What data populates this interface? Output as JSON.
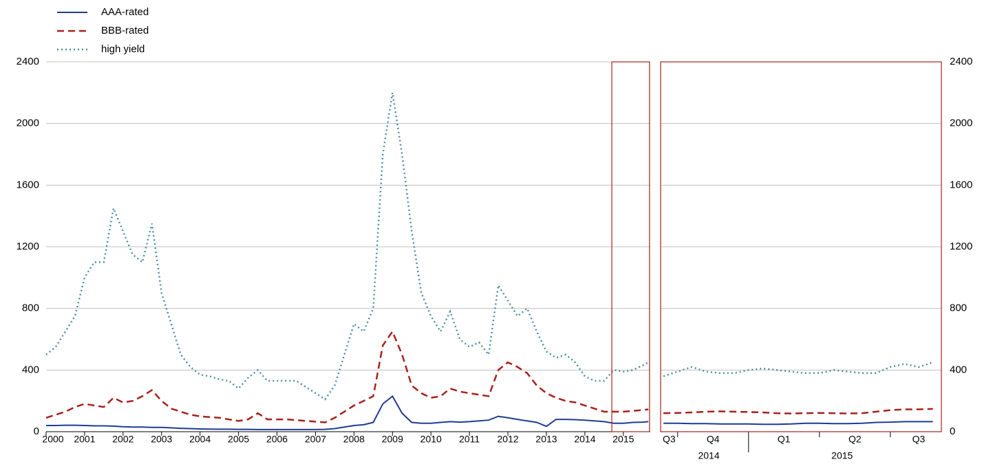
{
  "chart_data": [
    {
      "type": "line",
      "legend": "top-left",
      "grid": true,
      "yaxis_side": "left",
      "xlim": [
        2000,
        2015.7
      ],
      "ylim": [
        0,
        2400
      ],
      "yticks": [
        0,
        400,
        800,
        1200,
        1600,
        2000,
        2400
      ],
      "xticks": [
        2000,
        2001,
        2002,
        2003,
        2004,
        2005,
        2006,
        2007,
        2008,
        2009,
        2010,
        2011,
        2012,
        2013,
        2014,
        2015
      ],
      "highlight": [
        2014.7,
        2015.68
      ],
      "highlight_color": "#a8201a",
      "x": [
        2000,
        2000.25,
        2000.5,
        2000.75,
        2001,
        2001.25,
        2001.5,
        2001.75,
        2002,
        2002.25,
        2002.5,
        2002.75,
        2003,
        2003.25,
        2003.5,
        2003.75,
        2004,
        2004.25,
        2004.5,
        2004.75,
        2005,
        2005.25,
        2005.5,
        2005.75,
        2006,
        2006.25,
        2006.5,
        2006.75,
        2007,
        2007.25,
        2007.5,
        2007.75,
        2008,
        2008.25,
        2008.5,
        2008.75,
        2009,
        2009.25,
        2009.5,
        2009.75,
        2010,
        2010.25,
        2010.5,
        2010.75,
        2011,
        2011.25,
        2011.5,
        2011.75,
        2012,
        2012.25,
        2012.5,
        2012.75,
        2013,
        2013.25,
        2013.5,
        2013.75,
        2014,
        2014.25,
        2014.5,
        2014.75,
        2015,
        2015.25,
        2015.5,
        2015.65
      ],
      "series": [
        {
          "name": "AAA-rated",
          "color": "#1f3a93",
          "dash": "solid",
          "values": [
            40,
            40,
            42,
            42,
            40,
            38,
            38,
            36,
            32,
            30,
            30,
            28,
            28,
            25,
            22,
            20,
            18,
            17,
            16,
            16,
            15,
            15,
            14,
            14,
            14,
            14,
            14,
            14,
            14,
            15,
            20,
            30,
            40,
            45,
            60,
            180,
            230,
            120,
            60,
            55,
            55,
            60,
            65,
            62,
            65,
            70,
            75,
            100,
            90,
            80,
            70,
            60,
            35,
            80,
            80,
            78,
            75,
            70,
            65,
            55,
            55,
            60,
            62,
            65
          ]
        },
        {
          "name": "BBB-rated",
          "color": "#a8201a",
          "dash": "dashed",
          "values": [
            90,
            110,
            130,
            160,
            180,
            170,
            160,
            220,
            190,
            200,
            230,
            270,
            200,
            150,
            130,
            110,
            100,
            95,
            90,
            80,
            70,
            80,
            120,
            80,
            80,
            80,
            75,
            70,
            65,
            60,
            90,
            130,
            170,
            200,
            230,
            560,
            650,
            500,
            300,
            250,
            220,
            230,
            280,
            260,
            250,
            240,
            230,
            400,
            450,
            420,
            380,
            300,
            250,
            220,
            200,
            190,
            170,
            150,
            130,
            130,
            130,
            135,
            140,
            145
          ]
        },
        {
          "name": "high yield",
          "color": "#4a8f9f",
          "dash": "dotted",
          "values": [
            500,
            550,
            650,
            750,
            1000,
            1100,
            1100,
            1450,
            1300,
            1150,
            1100,
            1350,
            900,
            700,
            500,
            420,
            370,
            360,
            340,
            330,
            280,
            350,
            400,
            330,
            330,
            330,
            330,
            290,
            250,
            210,
            300,
            500,
            700,
            650,
            800,
            1800,
            2200,
            1800,
            1300,
            900,
            750,
            650,
            780,
            600,
            550,
            580,
            500,
            950,
            850,
            750,
            800,
            650,
            520,
            480,
            500,
            450,
            360,
            330,
            330,
            400,
            390,
            400,
            430,
            450
          ]
        }
      ]
    },
    {
      "type": "line",
      "grid": true,
      "yaxis_side": "right",
      "frame_color": "#a8201a",
      "xlim": [
        2014.69,
        2015.68
      ],
      "ylim": [
        0,
        2400
      ],
      "yticks": [
        0,
        400,
        800,
        1200,
        1600,
        2000,
        2400
      ],
      "xticks": [
        {
          "value": 2014.72,
          "label": "Q3"
        },
        {
          "value": 2014.875,
          "label": "Q4"
        },
        {
          "value": 2015.125,
          "label": "Q1"
        },
        {
          "value": 2015.375,
          "label": "Q2"
        },
        {
          "value": 2015.6,
          "label": "Q3"
        }
      ],
      "xtick_marks": [
        2014.75,
        2015,
        2015.25,
        2015.5
      ],
      "xgroups": [
        {
          "value": 2014.86,
          "label": "2014"
        },
        {
          "value": 2015.33,
          "label": "2015"
        }
      ],
      "x": [
        2014.7,
        2014.75,
        2014.8,
        2014.85,
        2014.9,
        2014.95,
        2015,
        2015.05,
        2015.1,
        2015.15,
        2015.2,
        2015.25,
        2015.3,
        2015.35,
        2015.4,
        2015.45,
        2015.5,
        2015.55,
        2015.6,
        2015.65
      ],
      "series": [
        {
          "color": "#1f3a93",
          "dash": "solid",
          "values": [
            55,
            55,
            52,
            52,
            50,
            50,
            50,
            48,
            48,
            50,
            55,
            55,
            52,
            52,
            55,
            60,
            62,
            65,
            65,
            65
          ]
        },
        {
          "color": "#a8201a",
          "dash": "dashed",
          "values": [
            120,
            122,
            125,
            130,
            132,
            130,
            128,
            125,
            120,
            118,
            120,
            122,
            120,
            118,
            120,
            130,
            140,
            145,
            145,
            148
          ]
        },
        {
          "color": "#4a8f9f",
          "dash": "dotted",
          "values": [
            360,
            390,
            420,
            390,
            380,
            380,
            400,
            410,
            400,
            390,
            380,
            380,
            400,
            390,
            380,
            380,
            420,
            440,
            420,
            450
          ]
        }
      ]
    }
  ]
}
